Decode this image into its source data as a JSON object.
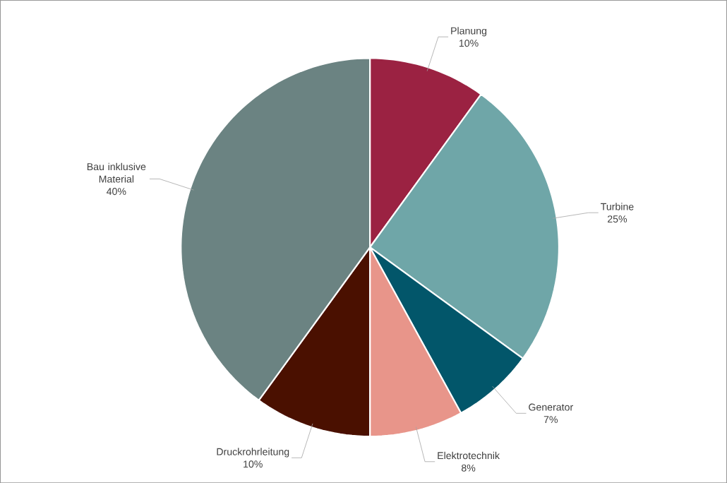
{
  "chart_data": {
    "type": "pie",
    "categories": [
      "Planung",
      "Turbine",
      "Generator",
      "Elektrotechnik",
      "Druckrohrleitung",
      "Bau inklusive Material"
    ],
    "values": [
      10,
      25,
      7,
      8,
      10,
      40
    ],
    "value_labels": [
      "10%",
      "25%",
      "7%",
      "8%",
      "10%",
      "40%"
    ],
    "colors": [
      "#9b2242",
      "#6fa6a8",
      "#02566a",
      "#e8958a",
      "#4a1000",
      "#6b8382"
    ]
  }
}
